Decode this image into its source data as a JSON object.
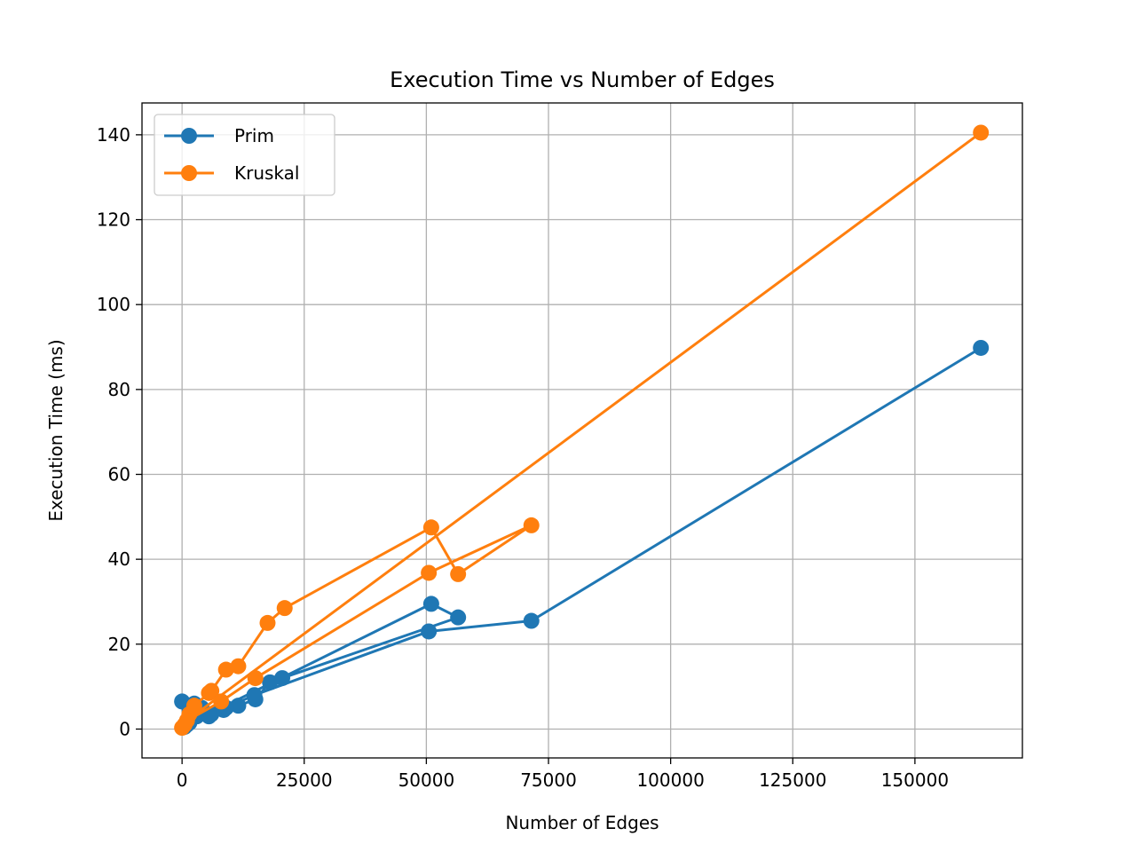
{
  "chart_data": {
    "type": "line",
    "title": "Execution Time vs Number of Edges",
    "xlabel": "Number of Edges",
    "ylabel": "Execution Time (ms)",
    "xlim": [
      -8200,
      172000
    ],
    "ylim": [
      -6.8,
      147.5
    ],
    "xticks": [
      0,
      25000,
      50000,
      75000,
      100000,
      125000,
      150000
    ],
    "xtick_labels": [
      "0",
      "25000",
      "50000",
      "75000",
      "100000",
      "125000",
      "150000"
    ],
    "yticks": [
      0,
      20,
      40,
      60,
      80,
      100,
      120,
      140
    ],
    "ytick_labels": [
      "0",
      "20",
      "40",
      "60",
      "80",
      "100",
      "120",
      "140"
    ],
    "grid": true,
    "legend_position": "top-left",
    "markers": true,
    "series": [
      {
        "name": "Prim",
        "color": "#1f77b4",
        "x": [
          0,
          500,
          1500,
          3000,
          2500,
          5500,
          6000,
          8500,
          11500,
          15000,
          18000,
          20500,
          56500,
          51000,
          1000,
          4000,
          9000,
          14800,
          50500,
          71500,
          163500
        ],
        "y": [
          6.5,
          0.5,
          1.5,
          3,
          6,
          3,
          3.5,
          4.5,
          5.5,
          7,
          11,
          12,
          26.3,
          29.5,
          1,
          5,
          5,
          8,
          23,
          25.5,
          89.8
        ]
      },
      {
        "name": "Kruskal",
        "color": "#ff7f0e",
        "x": [
          0,
          500,
          1500,
          2500,
          5500,
          6000,
          9000,
          11500,
          17500,
          21000,
          51000,
          56500,
          71500,
          50500,
          15000,
          8000,
          1000,
          163500
        ],
        "y": [
          0.3,
          1,
          3.5,
          5.5,
          8.5,
          9,
          14,
          14.8,
          25,
          28.5,
          47.5,
          36.5,
          48,
          36.8,
          12,
          6.5,
          2,
          140.5
        ]
      }
    ]
  }
}
